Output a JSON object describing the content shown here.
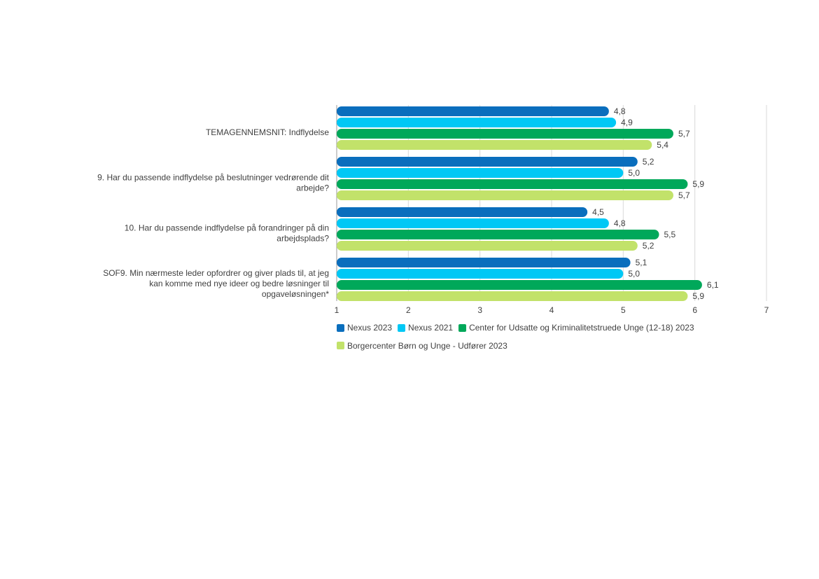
{
  "chart_data": {
    "type": "bar",
    "orientation": "horizontal",
    "categories": [
      "TEMAGENNEMSNIT: Indflydelse",
      "9. Har du passende indflydelse på beslutninger vedrørende dit arbejde?",
      "10. Har du passende indflydelse på forandringer på din arbejdsplads?",
      "SOF9. Min nærmeste leder opfordrer og giver plads til, at jeg kan komme med nye ideer og bedre løsninger til opgaveløsningen*"
    ],
    "series": [
      {
        "name": "Nexus 2023",
        "color": "#0a6ebd",
        "values": [
          4.8,
          5.2,
          4.5,
          5.1
        ],
        "labels": [
          "4,8",
          "5,2",
          "4,5",
          "5,1"
        ]
      },
      {
        "name": "Nexus 2021",
        "color": "#00c8f5",
        "values": [
          4.9,
          5.0,
          4.8,
          5.0
        ],
        "labels": [
          "4,9",
          "5,0",
          "4,8",
          "5,0"
        ]
      },
      {
        "name": "Center for Udsatte og Kriminalitetstruede Unge (12-18) 2023",
        "color": "#00a85a",
        "values": [
          5.7,
          5.9,
          5.5,
          6.1
        ],
        "labels": [
          "5,7",
          "5,9",
          "5,5",
          "6,1"
        ]
      },
      {
        "name": "Borgercenter Børn og Unge - Udfører 2023",
        "color": "#c2e26a",
        "values": [
          5.4,
          5.7,
          5.2,
          5.9
        ],
        "labels": [
          "5,4",
          "5,7",
          "5,2",
          "5,9"
        ]
      }
    ],
    "xlim": [
      1,
      7
    ],
    "xticks": [
      "1",
      "2",
      "3",
      "4",
      "5",
      "6",
      "7"
    ],
    "grid": "vertical",
    "legend_position": "bottom-left"
  }
}
